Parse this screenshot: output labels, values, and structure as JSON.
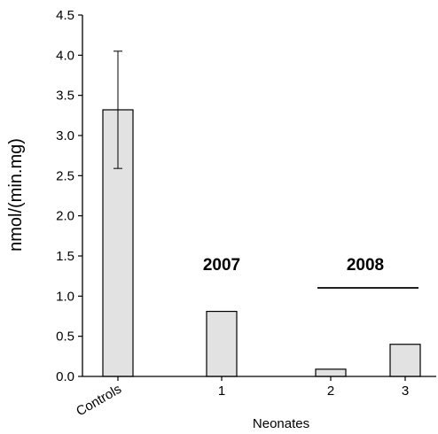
{
  "chart_data": {
    "type": "bar",
    "categories": [
      "Controls",
      "1",
      "2",
      "3"
    ],
    "values": [
      3.32,
      0.81,
      0.09,
      0.4
    ],
    "error_bars": [
      0.73,
      null,
      null,
      null
    ],
    "xlabel": "Neonates",
    "ylabel": "nmol/(min.mg)",
    "ylim": [
      0,
      4.5
    ],
    "yticks": [
      "0.0",
      "0.5",
      "1.0",
      "1.5",
      "2.0",
      "2.5",
      "3.0",
      "3.5",
      "4.0",
      "4.5"
    ],
    "annotations": [
      "2007",
      "2008"
    ],
    "grid": false,
    "bar_fill": "#e2e2e2",
    "bar_stroke": "#000000"
  }
}
